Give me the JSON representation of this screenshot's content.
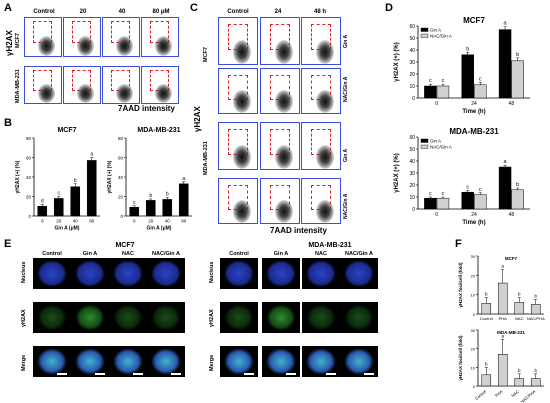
{
  "panels": {
    "A": {
      "letter": "A",
      "columns": [
        "Control",
        "20",
        "40",
        "80 μM"
      ],
      "rows": [
        "MCF7",
        "MDA-MB-231"
      ],
      "ylabel": "γH2AX",
      "xlabel": "7AAD intensity"
    },
    "C": {
      "letter": "C",
      "columns": [
        "Control",
        "24",
        "48 h"
      ],
      "rows": [
        "Gin A",
        "NAC/Gin A"
      ],
      "ylabel": "γH2AX",
      "xlabel": "7AAD intensity"
    },
    "E": {
      "letter": "E",
      "groups": [
        "MCF7",
        "MDA-MB-231"
      ],
      "columns": [
        "Control",
        "Gin A",
        "NAC",
        "NAC/Gin A"
      ],
      "rows": [
        "Nucleus",
        "γH2AX",
        "Merge"
      ]
    },
    "B": {
      "letter": "B"
    },
    "D": {
      "letter": "D"
    },
    "F": {
      "letter": "F"
    }
  },
  "chart_data": [
    {
      "id": "B1",
      "type": "bar",
      "title": "MCF7",
      "xlabel": "Gin A (μM)",
      "ylabel": "γH2AX (+) (%)",
      "categories": [
        "0",
        "20",
        "40",
        "80"
      ],
      "values": [
        10,
        18,
        30,
        57
      ],
      "errors": [
        2,
        2,
        3,
        3
      ],
      "letters": [
        "d",
        "c",
        "b",
        "a"
      ],
      "ylim": [
        0,
        80
      ],
      "yticks": [
        0,
        20,
        40,
        60,
        80
      ]
    },
    {
      "id": "B2",
      "type": "bar",
      "title": "MDA-MB-231",
      "xlabel": "Gin A (μM)",
      "ylabel": "γH2AX (+) (%)",
      "categories": [
        "0",
        "20",
        "40",
        "80"
      ],
      "values": [
        9,
        16,
        17,
        33
      ],
      "errors": [
        1.5,
        1.5,
        2,
        2
      ],
      "letters": [
        "c",
        "b",
        "b",
        "a"
      ],
      "ylim": [
        0,
        80
      ],
      "yticks": [
        0,
        20,
        40,
        60,
        80
      ]
    },
    {
      "id": "D1",
      "type": "bar",
      "title": "MCF7",
      "xlabel": "Time (h)",
      "ylabel": "γH2AX (+) (%)",
      "categories": [
        "0",
        "24",
        "48"
      ],
      "ylim": [
        0,
        60
      ],
      "yticks": [
        0,
        10,
        20,
        30,
        40,
        50,
        60
      ],
      "series": [
        {
          "name": "Gin A",
          "color": "#000000",
          "values": [
            10,
            36,
            57
          ],
          "errors": [
            1.5,
            2,
            2.5
          ],
          "letters": [
            "c",
            "b",
            "a"
          ]
        },
        {
          "name": "NAC/Gin A",
          "color": "#d0d0d0",
          "values": [
            10,
            11,
            31
          ],
          "errors": [
            1.5,
            2,
            2.5
          ],
          "letters": [
            "c",
            "c",
            "b"
          ]
        }
      ]
    },
    {
      "id": "D2",
      "type": "bar",
      "title": "MDA-MB-231",
      "xlabel": "Time (h)",
      "ylabel": "γH2AX (+) (%)",
      "categories": [
        "0",
        "24",
        "48"
      ],
      "ylim": [
        0,
        60
      ],
      "yticks": [
        0,
        10,
        20,
        30,
        40,
        50,
        60
      ],
      "series": [
        {
          "name": "Gin A",
          "color": "#000000",
          "values": [
            9,
            14,
            35
          ],
          "errors": [
            1,
            1.5,
            1.5
          ],
          "letters": [
            "c",
            "c",
            "a"
          ]
        },
        {
          "name": "NAC/Gin A",
          "color": "#d0d0d0",
          "values": [
            9,
            12,
            16
          ],
          "errors": [
            1,
            1.5,
            1.5
          ],
          "letters": [
            "c",
            "c",
            "b"
          ]
        }
      ]
    },
    {
      "id": "F1",
      "type": "bar",
      "title": "MCF7",
      "xlabel": "",
      "ylabel": "γH2AX foci/cell (fold)",
      "categories": [
        "Control",
        "PHA",
        "NAC",
        "NAC/PHA"
      ],
      "values": [
        5.5,
        16,
        6,
        5
      ],
      "errors": [
        3,
        7,
        2.5,
        2.5
      ],
      "letters": [
        "b",
        "a",
        "b",
        "b"
      ],
      "ylim": [
        0,
        30
      ],
      "yticks": [
        0,
        10,
        20,
        30
      ]
    },
    {
      "id": "F2",
      "type": "bar",
      "title": "MDA-MB-231",
      "xlabel": "",
      "ylabel": "γH2AX foci/cell (fold)",
      "categories": [
        "Control",
        "PHA",
        "NAC",
        "NAC/PHA"
      ],
      "values": [
        6,
        17,
        4,
        4
      ],
      "errors": [
        4,
        8,
        2.5,
        2.5
      ],
      "letters": [
        "b",
        "a",
        "b",
        "b"
      ],
      "ylim": [
        0,
        30
      ],
      "yticks": [
        0,
        10,
        20,
        30
      ]
    }
  ]
}
